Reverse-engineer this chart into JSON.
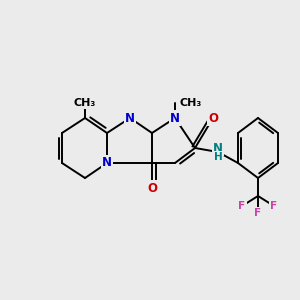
{
  "background_color": "#ebebeb",
  "figsize": [
    3.0,
    3.0
  ],
  "dpi": 100,
  "bond_lw": 1.4,
  "bond_color": "#000000",
  "blue": "#0000cc",
  "teal": "#008080",
  "red": "#cc0000",
  "pink": "#cc44aa",
  "xlim": [
    0,
    300
  ],
  "ylim": [
    0,
    300
  ]
}
